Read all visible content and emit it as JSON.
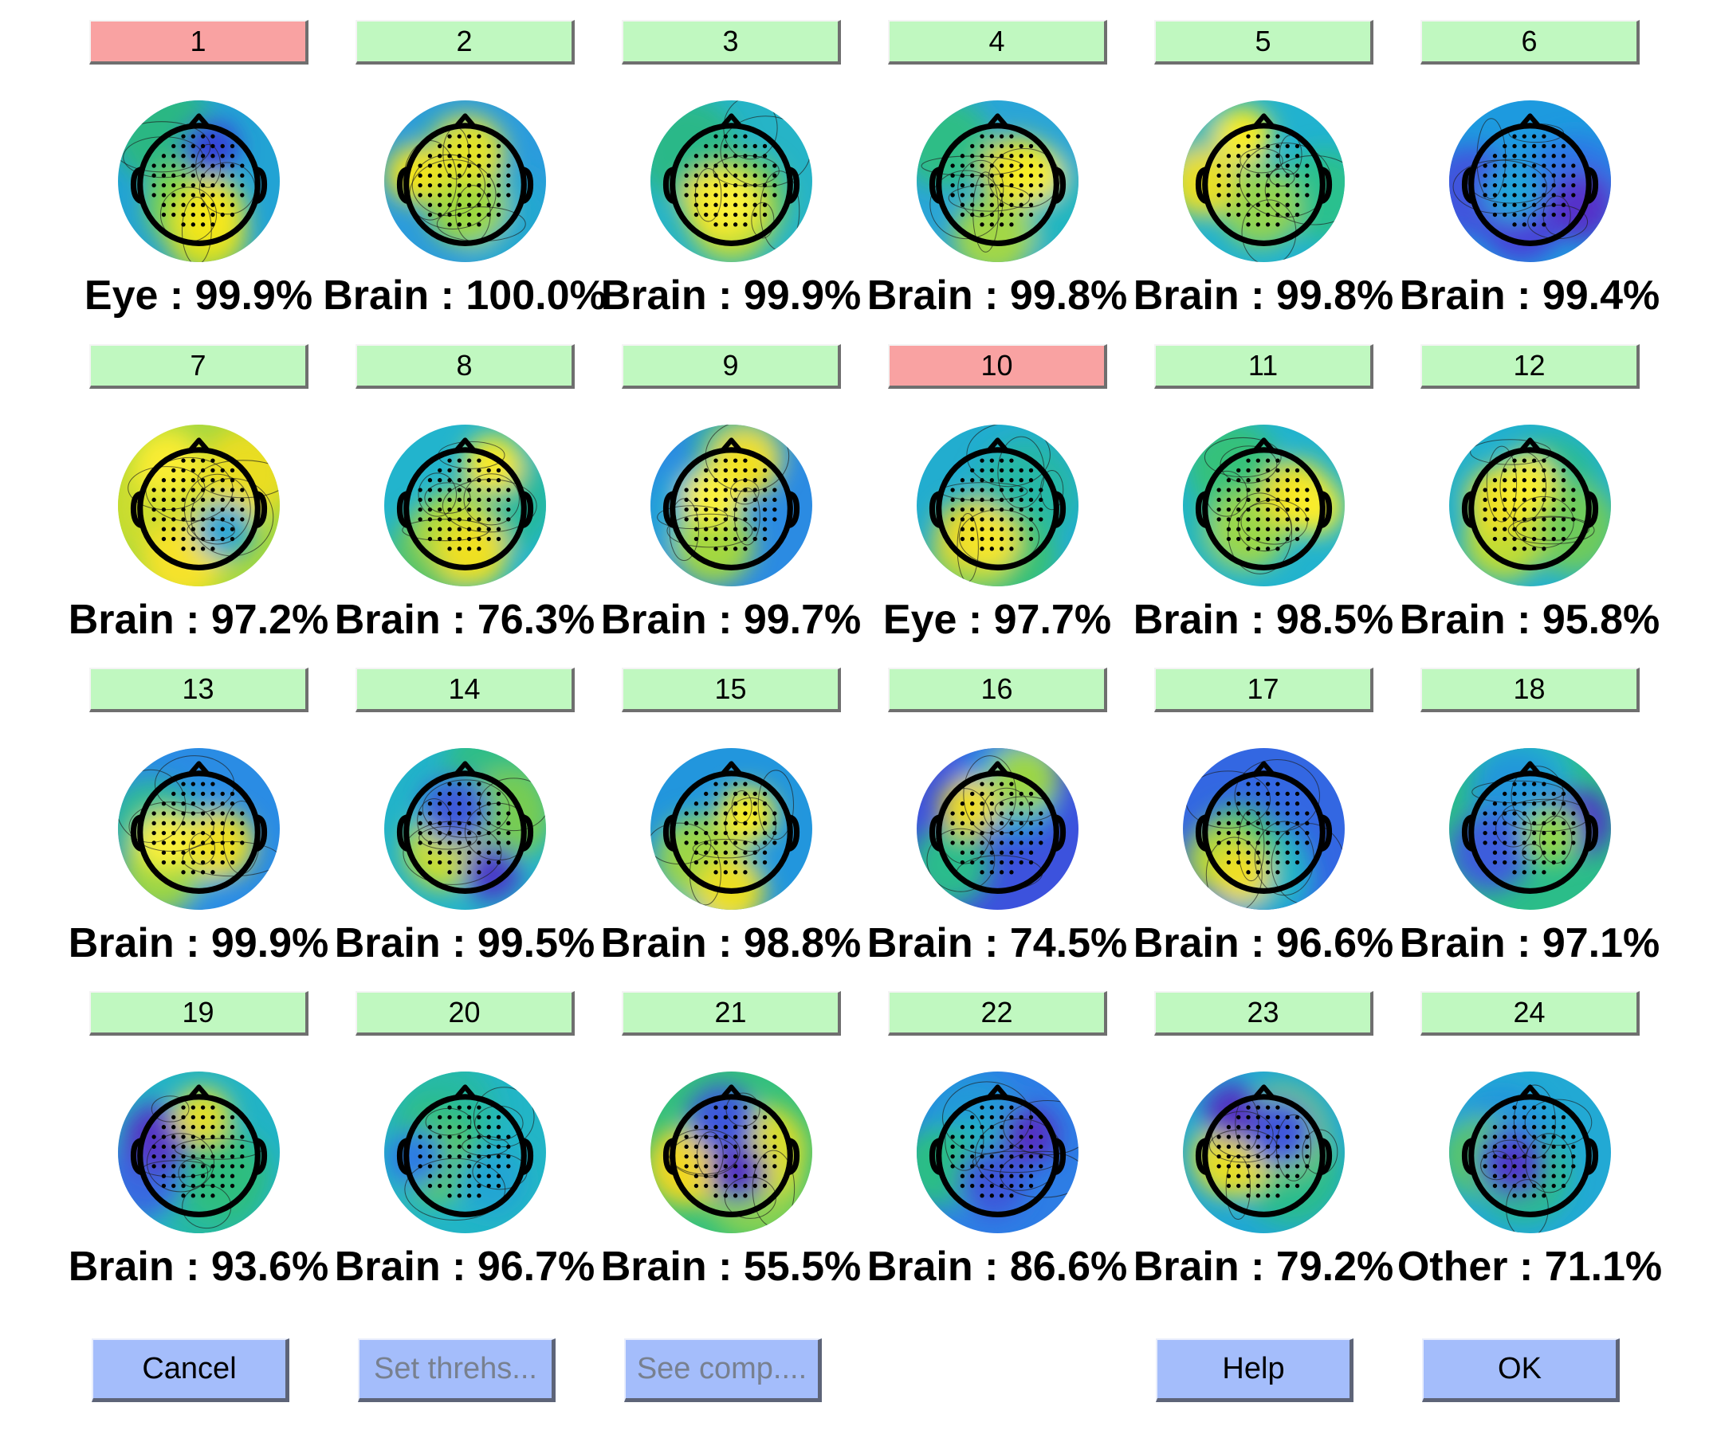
{
  "components": [
    {
      "number": "1",
      "button_state": "rejected",
      "label": "Eye : 99.9%",
      "map_colors": [
        "#22a3d4",
        "#2ab783",
        "#7bd34b",
        "#c9dd27",
        "#f5e71f",
        "#3543d8"
      ]
    },
    {
      "number": "2",
      "button_state": "accepted",
      "label": "Brain : 100.0%",
      "map_colors": [
        "#2b9cdc",
        "#22a7d0",
        "#2cb785",
        "#9cd73f",
        "#e2e229",
        "#f3e41c"
      ]
    },
    {
      "number": "3",
      "button_state": "accepted",
      "label": "Brain : 99.9%",
      "map_colors": [
        "#26b4c7",
        "#2ab888",
        "#6cc85a",
        "#c2dc34",
        "#f2e21f",
        "#fcf23a"
      ]
    },
    {
      "number": "4",
      "button_state": "accepted",
      "label": "Brain : 99.8%",
      "map_colors": [
        "#2aa5d7",
        "#22b6c0",
        "#2dbd86",
        "#a2d746",
        "#eade23",
        "#f8ee25"
      ]
    },
    {
      "number": "5",
      "button_state": "accepted",
      "label": "Brain : 99.8%",
      "map_colors": [
        "#21b2cf",
        "#22b7b7",
        "#2cc08e",
        "#93d351",
        "#e8de26",
        "#f8ec22"
      ]
    },
    {
      "number": "6",
      "button_state": "accepted",
      "label": "Brain : 99.4%",
      "map_colors": [
        "#1d9adf",
        "#2e74e6",
        "#3f55dd",
        "#4a3fd8",
        "#5533c9",
        "#22a6d9"
      ]
    },
    {
      "number": "7",
      "button_state": "accepted",
      "label": "Brain : 97.2%",
      "map_colors": [
        "#a6d83f",
        "#cbdd2f",
        "#e9dd24",
        "#f6e229",
        "#f9ec33",
        "#2aa7d7"
      ]
    },
    {
      "number": "8",
      "button_state": "accepted",
      "label": "Brain : 76.3%",
      "map_colors": [
        "#22b4cd",
        "#28b99d",
        "#59c566",
        "#b3d93a",
        "#efe023",
        "#f8e928"
      ]
    },
    {
      "number": "9",
      "button_state": "accepted",
      "label": "Brain : 99.7%",
      "map_colors": [
        "#2b8be2",
        "#22a7d6",
        "#2dbb92",
        "#a3d840",
        "#f1e021",
        "#fbf23c"
      ]
    },
    {
      "number": "10",
      "button_state": "rejected",
      "label": "Eye : 97.7%",
      "map_colors": [
        "#22adcf",
        "#27b7a6",
        "#39c176",
        "#92d350",
        "#e4d72a",
        "#f7e629"
      ]
    },
    {
      "number": "11",
      "button_state": "accepted",
      "label": "Brain : 98.5%",
      "map_colors": [
        "#22b3ce",
        "#21bba8",
        "#34c17a",
        "#9ad74b",
        "#efe024",
        "#faed2a"
      ]
    },
    {
      "number": "12",
      "button_state": "accepted",
      "label": "Brain : 95.8%",
      "map_colors": [
        "#22b0cf",
        "#2bbc91",
        "#6ecb5c",
        "#bedc36",
        "#ecdf26",
        "#f9ee2e"
      ]
    },
    {
      "number": "13",
      "button_state": "accepted",
      "label": "Brain : 99.9%",
      "map_colors": [
        "#2a8ce4",
        "#22a8d4",
        "#2dbc94",
        "#9bd644",
        "#efe024",
        "#fbf03a"
      ]
    },
    {
      "number": "14",
      "button_state": "accepted",
      "label": "Brain : 99.5%",
      "map_colors": [
        "#22b3c9",
        "#2fbd87",
        "#76cc53",
        "#c7dd30",
        "#3d5ad9",
        "#4a3bc8"
      ]
    },
    {
      "number": "15",
      "button_state": "accepted",
      "label": "Brain : 98.8%",
      "map_colors": [
        "#2296dd",
        "#22b0cc",
        "#2fbd89",
        "#9bd546",
        "#ebdf24",
        "#f8ec28"
      ]
    },
    {
      "number": "16",
      "button_state": "accepted",
      "label": "Brain : 74.5%",
      "map_colors": [
        "#3c52dd",
        "#2d78e4",
        "#21a4d6",
        "#2cbc8c",
        "#9bd644",
        "#f0df22"
      ]
    },
    {
      "number": "17",
      "button_state": "accepted",
      "label": "Brain : 96.6%",
      "map_colors": [
        "#3367e2",
        "#2498dc",
        "#22b6c4",
        "#45c173",
        "#b1d93b",
        "#f0df21"
      ]
    },
    {
      "number": "18",
      "button_state": "accepted",
      "label": "Brain : 97.1%",
      "map_colors": [
        "#2bbd89",
        "#22b2c8",
        "#2396da",
        "#3c5ddc",
        "#4b39c4",
        "#92d64c"
      ]
    },
    {
      "number": "19",
      "button_state": "accepted",
      "label": "Brain : 93.6%",
      "map_colors": [
        "#22b3c5",
        "#26b9a0",
        "#2fbd7f",
        "#3769e0",
        "#5535c6",
        "#e2df2a"
      ]
    },
    {
      "number": "20",
      "button_state": "accepted",
      "label": "Brain : 96.7%",
      "map_colors": [
        "#22b5c6",
        "#25b9a4",
        "#2ebe86",
        "#5cc764",
        "#22a5d3",
        "#2d7ce3"
      ]
    },
    {
      "number": "21",
      "button_state": "accepted",
      "label": "Brain : 55.5%",
      "map_colors": [
        "#33c07d",
        "#8bd24f",
        "#d9dc2c",
        "#f0d724",
        "#3e58dc",
        "#5330c1"
      ]
    },
    {
      "number": "22",
      "button_state": "accepted",
      "label": "Brain : 86.6%",
      "map_colors": [
        "#2d7de5",
        "#2399d9",
        "#22b3c6",
        "#2cbd86",
        "#3c56d9",
        "#5233c4"
      ]
    },
    {
      "number": "23",
      "button_state": "accepted",
      "label": "Brain : 79.2%",
      "map_colors": [
        "#21a8d3",
        "#2cbc8d",
        "#8ed34d",
        "#e6dd26",
        "#3f58dc",
        "#5230c1"
      ]
    },
    {
      "number": "24",
      "button_state": "accepted",
      "label": "Other : 71.1%",
      "map_colors": [
        "#22a9d4",
        "#2495dd",
        "#2cbd88",
        "#5cc763",
        "#3f58d9",
        "#4f37c6"
      ]
    }
  ],
  "button_colors": {
    "accepted": "#c0f8c0",
    "rejected": "#f9a2a2"
  },
  "buttons": {
    "cancel": "Cancel",
    "set_thresholds": "Set threhs...",
    "see_components": "See comp....",
    "help": "Help",
    "ok": "OK"
  }
}
